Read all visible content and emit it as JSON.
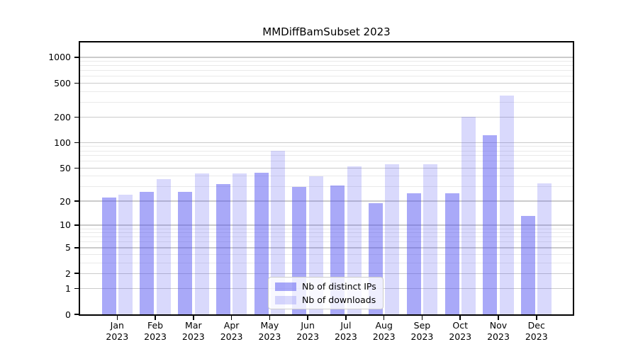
{
  "title": "MMDiffBamSubset 2023",
  "legend": {
    "entries": [
      {
        "label": "Nb of distinct IPs",
        "color": "#5050F07D"
      },
      {
        "label": "Nb of downloads",
        "color": "#5050F038"
      }
    ]
  },
  "axes": {
    "y_ticks": [
      "0",
      "1",
      "2",
      "5",
      "10",
      "20",
      "50",
      "100",
      "200",
      "500",
      "1000"
    ],
    "x_ticks": [
      "Jan 2023",
      "Feb 2023",
      "Mar 2023",
      "Apr 2023",
      "May 2023",
      "Jun 2023",
      "Jul 2023",
      "Aug 2023",
      "Sep 2023",
      "Oct 2023",
      "Nov 2023",
      "Dec 2023"
    ]
  },
  "colors": {
    "ips_bar": "#5050F07D",
    "downloads_bar": "#5050F038",
    "grid_major": "#CBCBCB",
    "grid_minor": "#E9E9E9",
    "axis": "#000000",
    "background": "#FFFFFF",
    "legend_border": "#CCCCCC"
  },
  "chart_data": {
    "type": "bar",
    "title": "MMDiffBamSubset 2023",
    "categories": [
      "Jan 2023",
      "Feb 2023",
      "Mar 2023",
      "Apr 2023",
      "May 2023",
      "Jun 2023",
      "Jul 2023",
      "Aug 2023",
      "Sep 2023",
      "Oct 2023",
      "Nov 2023",
      "Dec 2023"
    ],
    "series": [
      {
        "name": "Nb of distinct IPs",
        "values": [
          22,
          26,
          26,
          32,
          44,
          30,
          31,
          19,
          25,
          25,
          123,
          13
        ]
      },
      {
        "name": "Nb of downloads",
        "values": [
          24,
          37,
          43,
          43,
          80,
          40,
          52,
          55,
          55,
          200,
          354,
          33
        ]
      }
    ],
    "xlabel": "",
    "ylabel": "",
    "yscale": "log1p",
    "ylim": [
      0,
      1450
    ],
    "ytick_values": [
      0,
      1,
      2,
      5,
      10,
      20,
      50,
      100,
      200,
      500,
      1000
    ],
    "yminor_values": [
      3,
      4,
      6,
      7,
      8,
      9,
      30,
      40,
      60,
      70,
      80,
      90,
      300,
      400,
      600,
      700,
      800,
      900
    ],
    "grid": true,
    "legend_position": "lower center inside"
  }
}
